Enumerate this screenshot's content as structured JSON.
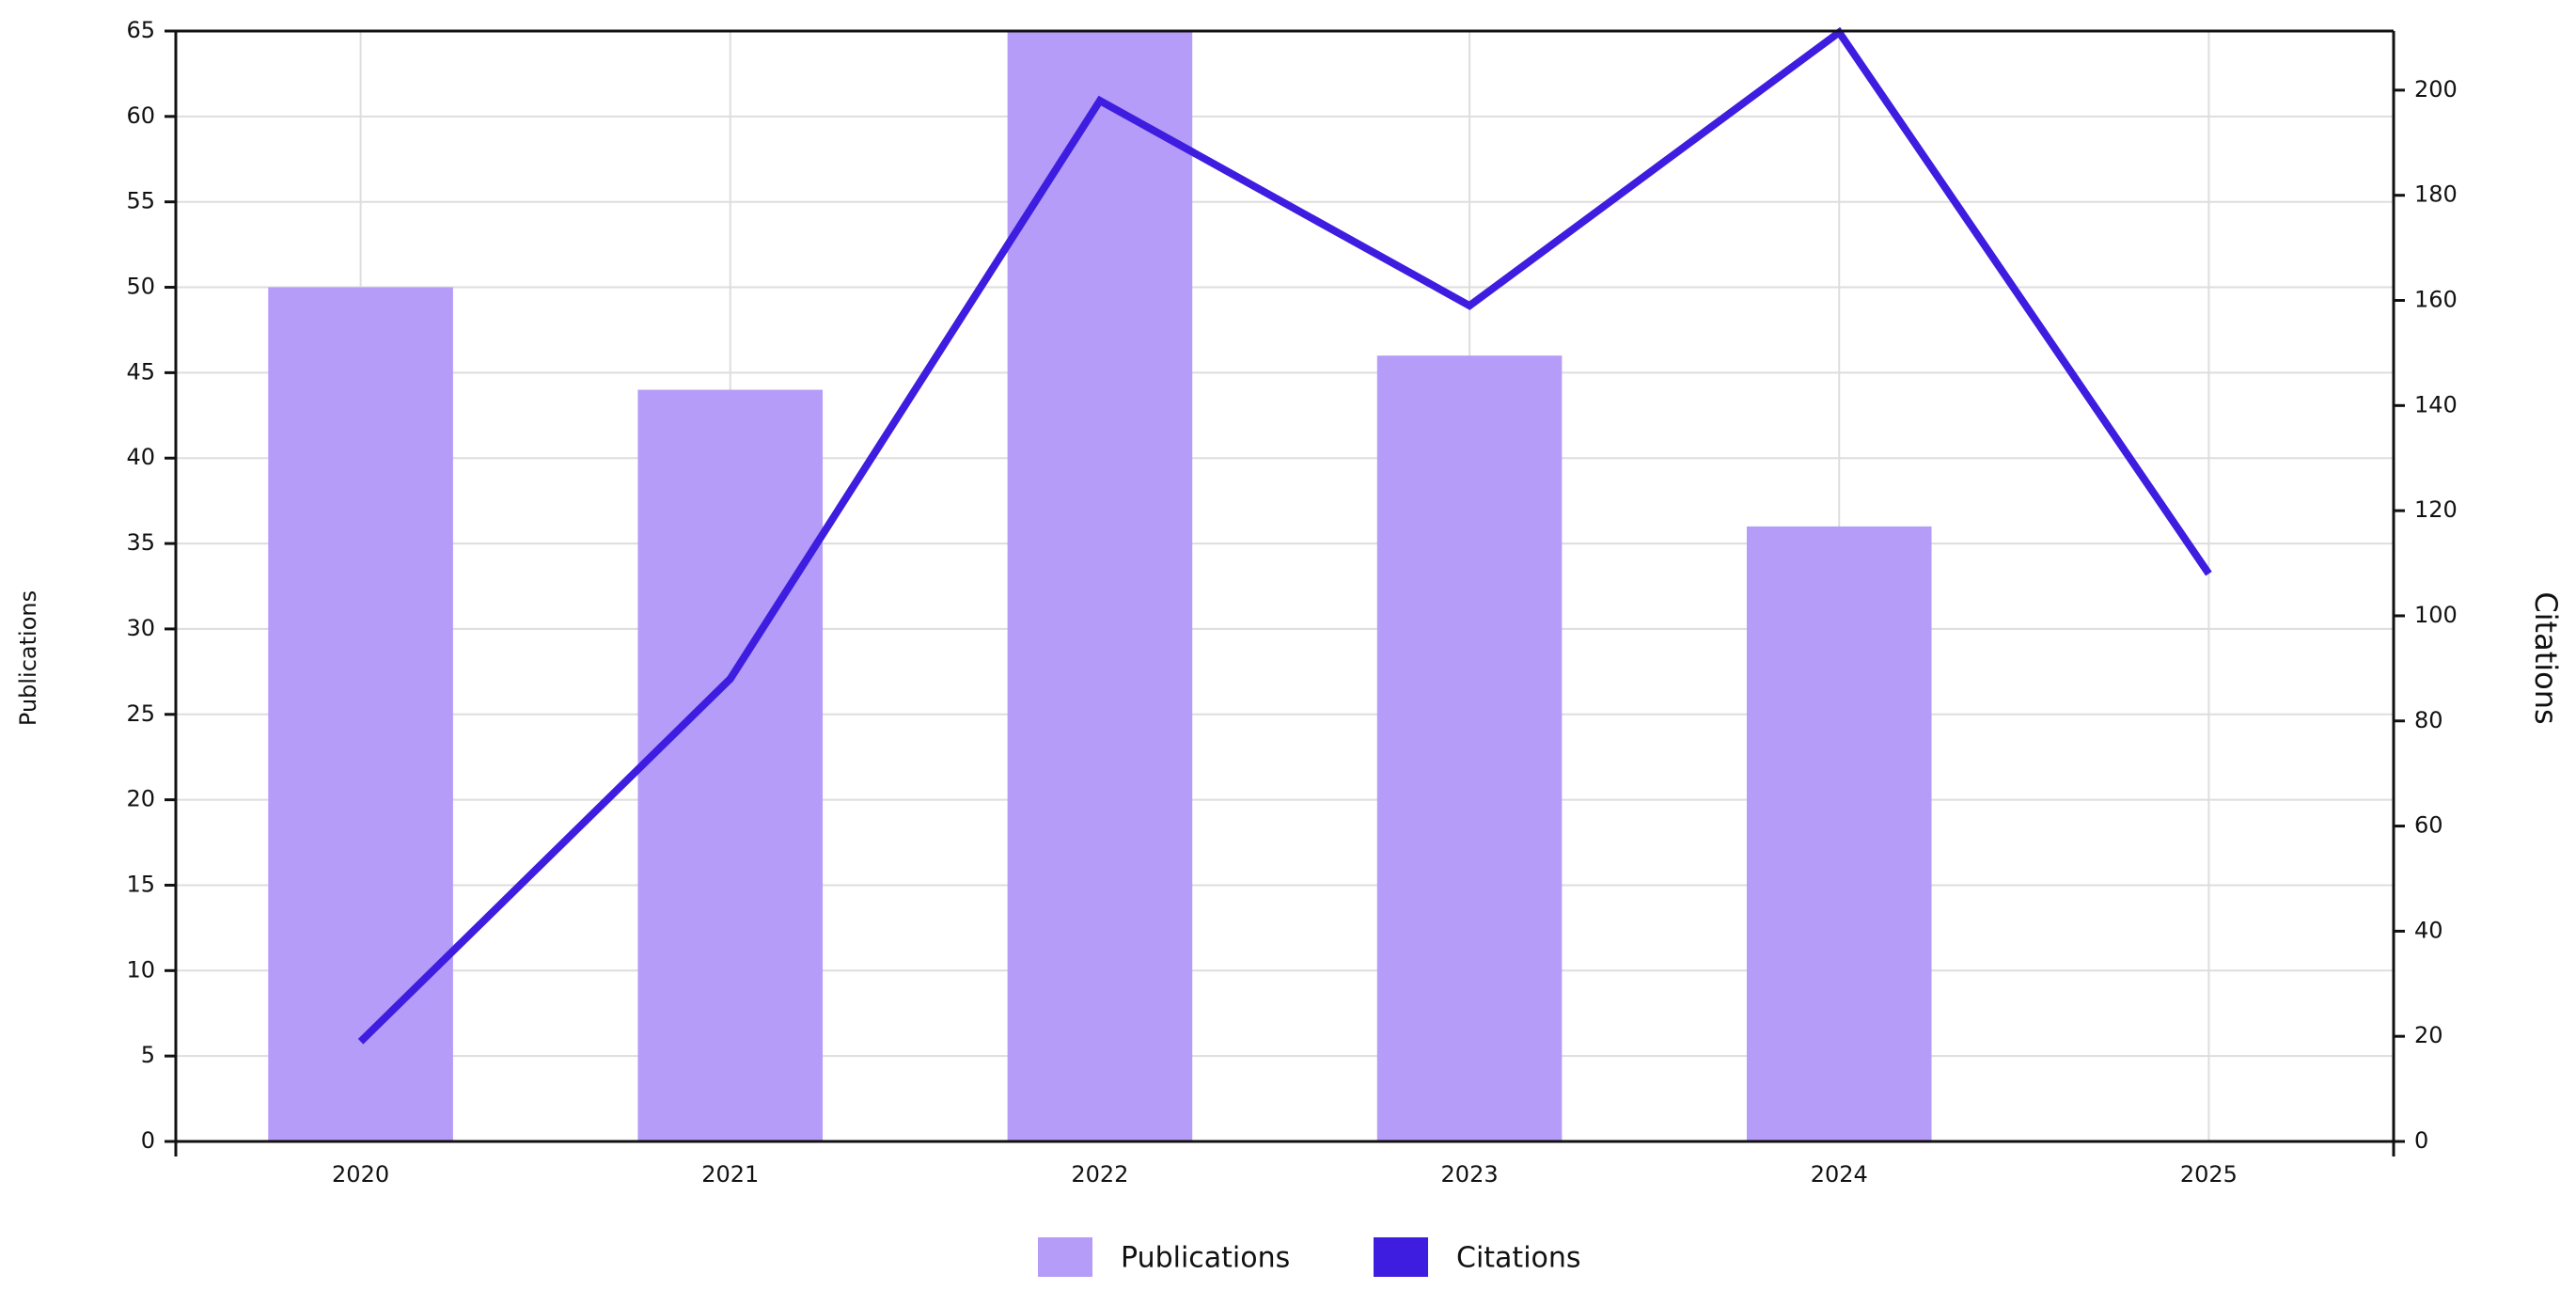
{
  "chart_data": {
    "type": "bar_line",
    "categories": [
      "2020",
      "2021",
      "2022",
      "2023",
      "2024",
      "2025"
    ],
    "y_label": "Publications",
    "y2_label": "Citations",
    "series": [
      {
        "name": "Publications",
        "type": "bar",
        "color": "#b49cf8",
        "values": [
          50,
          44,
          65,
          46,
          36,
          0
        ]
      },
      {
        "name": "Citations",
        "type": "line",
        "axis": "y2",
        "color": "#3f1de0",
        "values": [
          19,
          88,
          198,
          159,
          211,
          108
        ]
      }
    ],
    "ylim": [
      0,
      65
    ],
    "yticks": [
      0,
      5,
      10,
      15,
      20,
      25,
      30,
      35,
      40,
      45,
      50,
      55,
      60,
      65
    ],
    "y2lim": [
      0,
      211.25
    ],
    "y2ticks": [
      0,
      20,
      40,
      60,
      80,
      100,
      120,
      140,
      160,
      180,
      200
    ],
    "grid": true
  }
}
